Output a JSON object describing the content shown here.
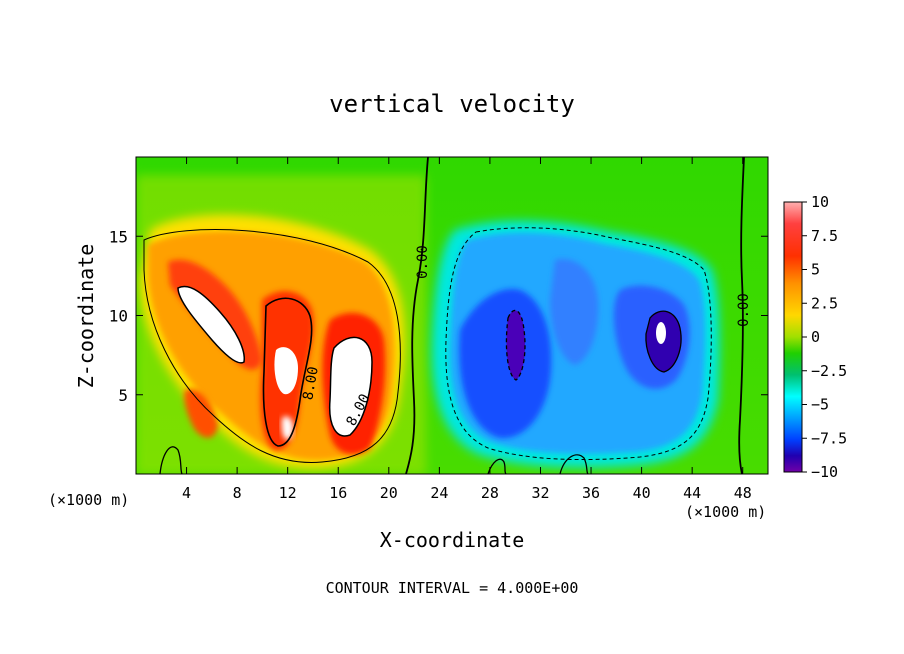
{
  "chart_data": {
    "type": "heatmap",
    "title": "vertical velocity",
    "xlabel": "X-coordinate",
    "ylabel": "Z-coordinate",
    "x_scale_label": "(×1000 m)",
    "x_scale_label_right": "(×1000 m)",
    "xlim": [
      0,
      50
    ],
    "ylim": [
      0,
      20
    ],
    "x_ticks": [
      4,
      8,
      12,
      16,
      20,
      24,
      28,
      32,
      36,
      40,
      44,
      48
    ],
    "x_tick_labels": [
      "4",
      "8",
      "12",
      "16",
      "20",
      "24",
      "28",
      "32",
      "36",
      "40",
      "44",
      "48"
    ],
    "y_ticks": [
      5,
      10,
      15
    ],
    "y_tick_labels": [
      "5",
      "10",
      "15"
    ],
    "colorbar": {
      "min": -10,
      "max": 10,
      "ticks": [
        10,
        7.5,
        5,
        2.5,
        0,
        -2.5,
        -5,
        -7.5,
        -10
      ],
      "tick_labels": [
        "10",
        "7.5",
        "5",
        "2.5",
        "0",
        "−2.5",
        "−5",
        "−7.5",
        "−10"
      ]
    },
    "contour_labels": [
      "0.00",
      "0.00",
      "8.00",
      "8.00"
    ],
    "footnote": "CONTOUR INTERVAL = 4.000E+00",
    "features": [
      {
        "kind": "updraft",
        "x": [
          2,
          22
        ],
        "z": [
          1,
          15
        ],
        "peak": 10
      },
      {
        "kind": "downdraft",
        "x": [
          24,
          36
        ],
        "z": [
          1,
          15
        ],
        "peak": -10
      },
      {
        "kind": "downdraft",
        "x": [
          36,
          46
        ],
        "z": [
          2,
          14
        ],
        "peak": -10
      }
    ]
  },
  "colors": {
    "scale": [
      "#8000a8",
      "#2000c8",
      "#0040ff",
      "#00a0ff",
      "#00ffff",
      "#00c050",
      "#20d000",
      "#90e000",
      "#ffff00",
      "#ffc000",
      "#ff8000",
      "#ff2000",
      "#ffffff"
    ]
  }
}
